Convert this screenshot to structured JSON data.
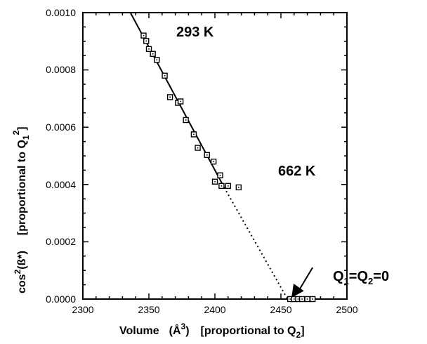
{
  "chart_data": {
    "type": "scatter",
    "x_ticks": [
      "2300",
      "2350",
      "2400",
      "2450",
      "2500"
    ],
    "y_ticks": [
      "0.0000",
      "0.0002",
      "0.0004",
      "0.0006",
      "0.0008",
      "0.0010"
    ],
    "xlim": [
      2300,
      2500
    ],
    "ylim": [
      0,
      0.001
    ],
    "grid": false,
    "xlabel": {
      "main": "Volume",
      "unit_prefix": "(Å",
      "unit_exp": "3",
      "unit_suffix": ")",
      "bracket_text": "[proportional to Q",
      "bracket_sub": "2",
      "bracket_close": "]"
    },
    "ylabel": {
      "main_prefix": "cos",
      "main_exp": "2",
      "main_suffix": "(ß*)",
      "bracket_text": "[proportional to Q",
      "bracket_sub": "1",
      "bracket_exp": "2",
      "bracket_close": "]"
    },
    "series": [
      {
        "points": [
          [
            2346,
            0.00092
          ],
          [
            2348,
            0.000901
          ],
          [
            2350,
            0.000873
          ],
          [
            2353,
            0.000856
          ],
          [
            2356,
            0.000835
          ],
          [
            2362,
            0.00078
          ],
          [
            2366,
            0.000705
          ],
          [
            2372,
            0.000685
          ],
          [
            2374,
            0.00069
          ],
          [
            2378,
            0.000625
          ],
          [
            2384,
            0.000575
          ],
          [
            2387,
            0.000528
          ],
          [
            2394,
            0.000503
          ],
          [
            2399,
            0.00048
          ],
          [
            2400,
            0.00041
          ],
          [
            2404,
            0.000432
          ],
          [
            2405,
            0.000395
          ],
          [
            2410,
            0.000395
          ],
          [
            2418,
            0.00039
          ],
          [
            2457,
            0.0
          ],
          [
            2460,
            0.0
          ],
          [
            2463,
            0.0
          ],
          [
            2466,
            0.0
          ],
          [
            2470,
            0.0
          ],
          [
            2474,
            0.0
          ]
        ]
      }
    ],
    "fit_line": {
      "solid": [
        [
          2336,
          0.001
        ],
        [
          2407,
          0.00039
        ]
      ],
      "dotted": [
        [
          2407,
          0.00039
        ],
        [
          2455,
          0.0
        ]
      ]
    },
    "annotations": [
      {
        "text": "293 K",
        "x": 2354,
        "y": 0.00092
      },
      {
        "text": "662 K",
        "x": 2409,
        "y": 0.00043
      },
      {
        "text_q1": "Q",
        "sub1": "1",
        "mid": "=Q",
        "sub2": "2",
        "tail": "=0",
        "x": 2456,
        "y": 6.2e-05,
        "arrow_from": [
          2474,
          0.00011
        ],
        "arrow_to": [
          2458,
          5e-06
        ]
      }
    ]
  }
}
